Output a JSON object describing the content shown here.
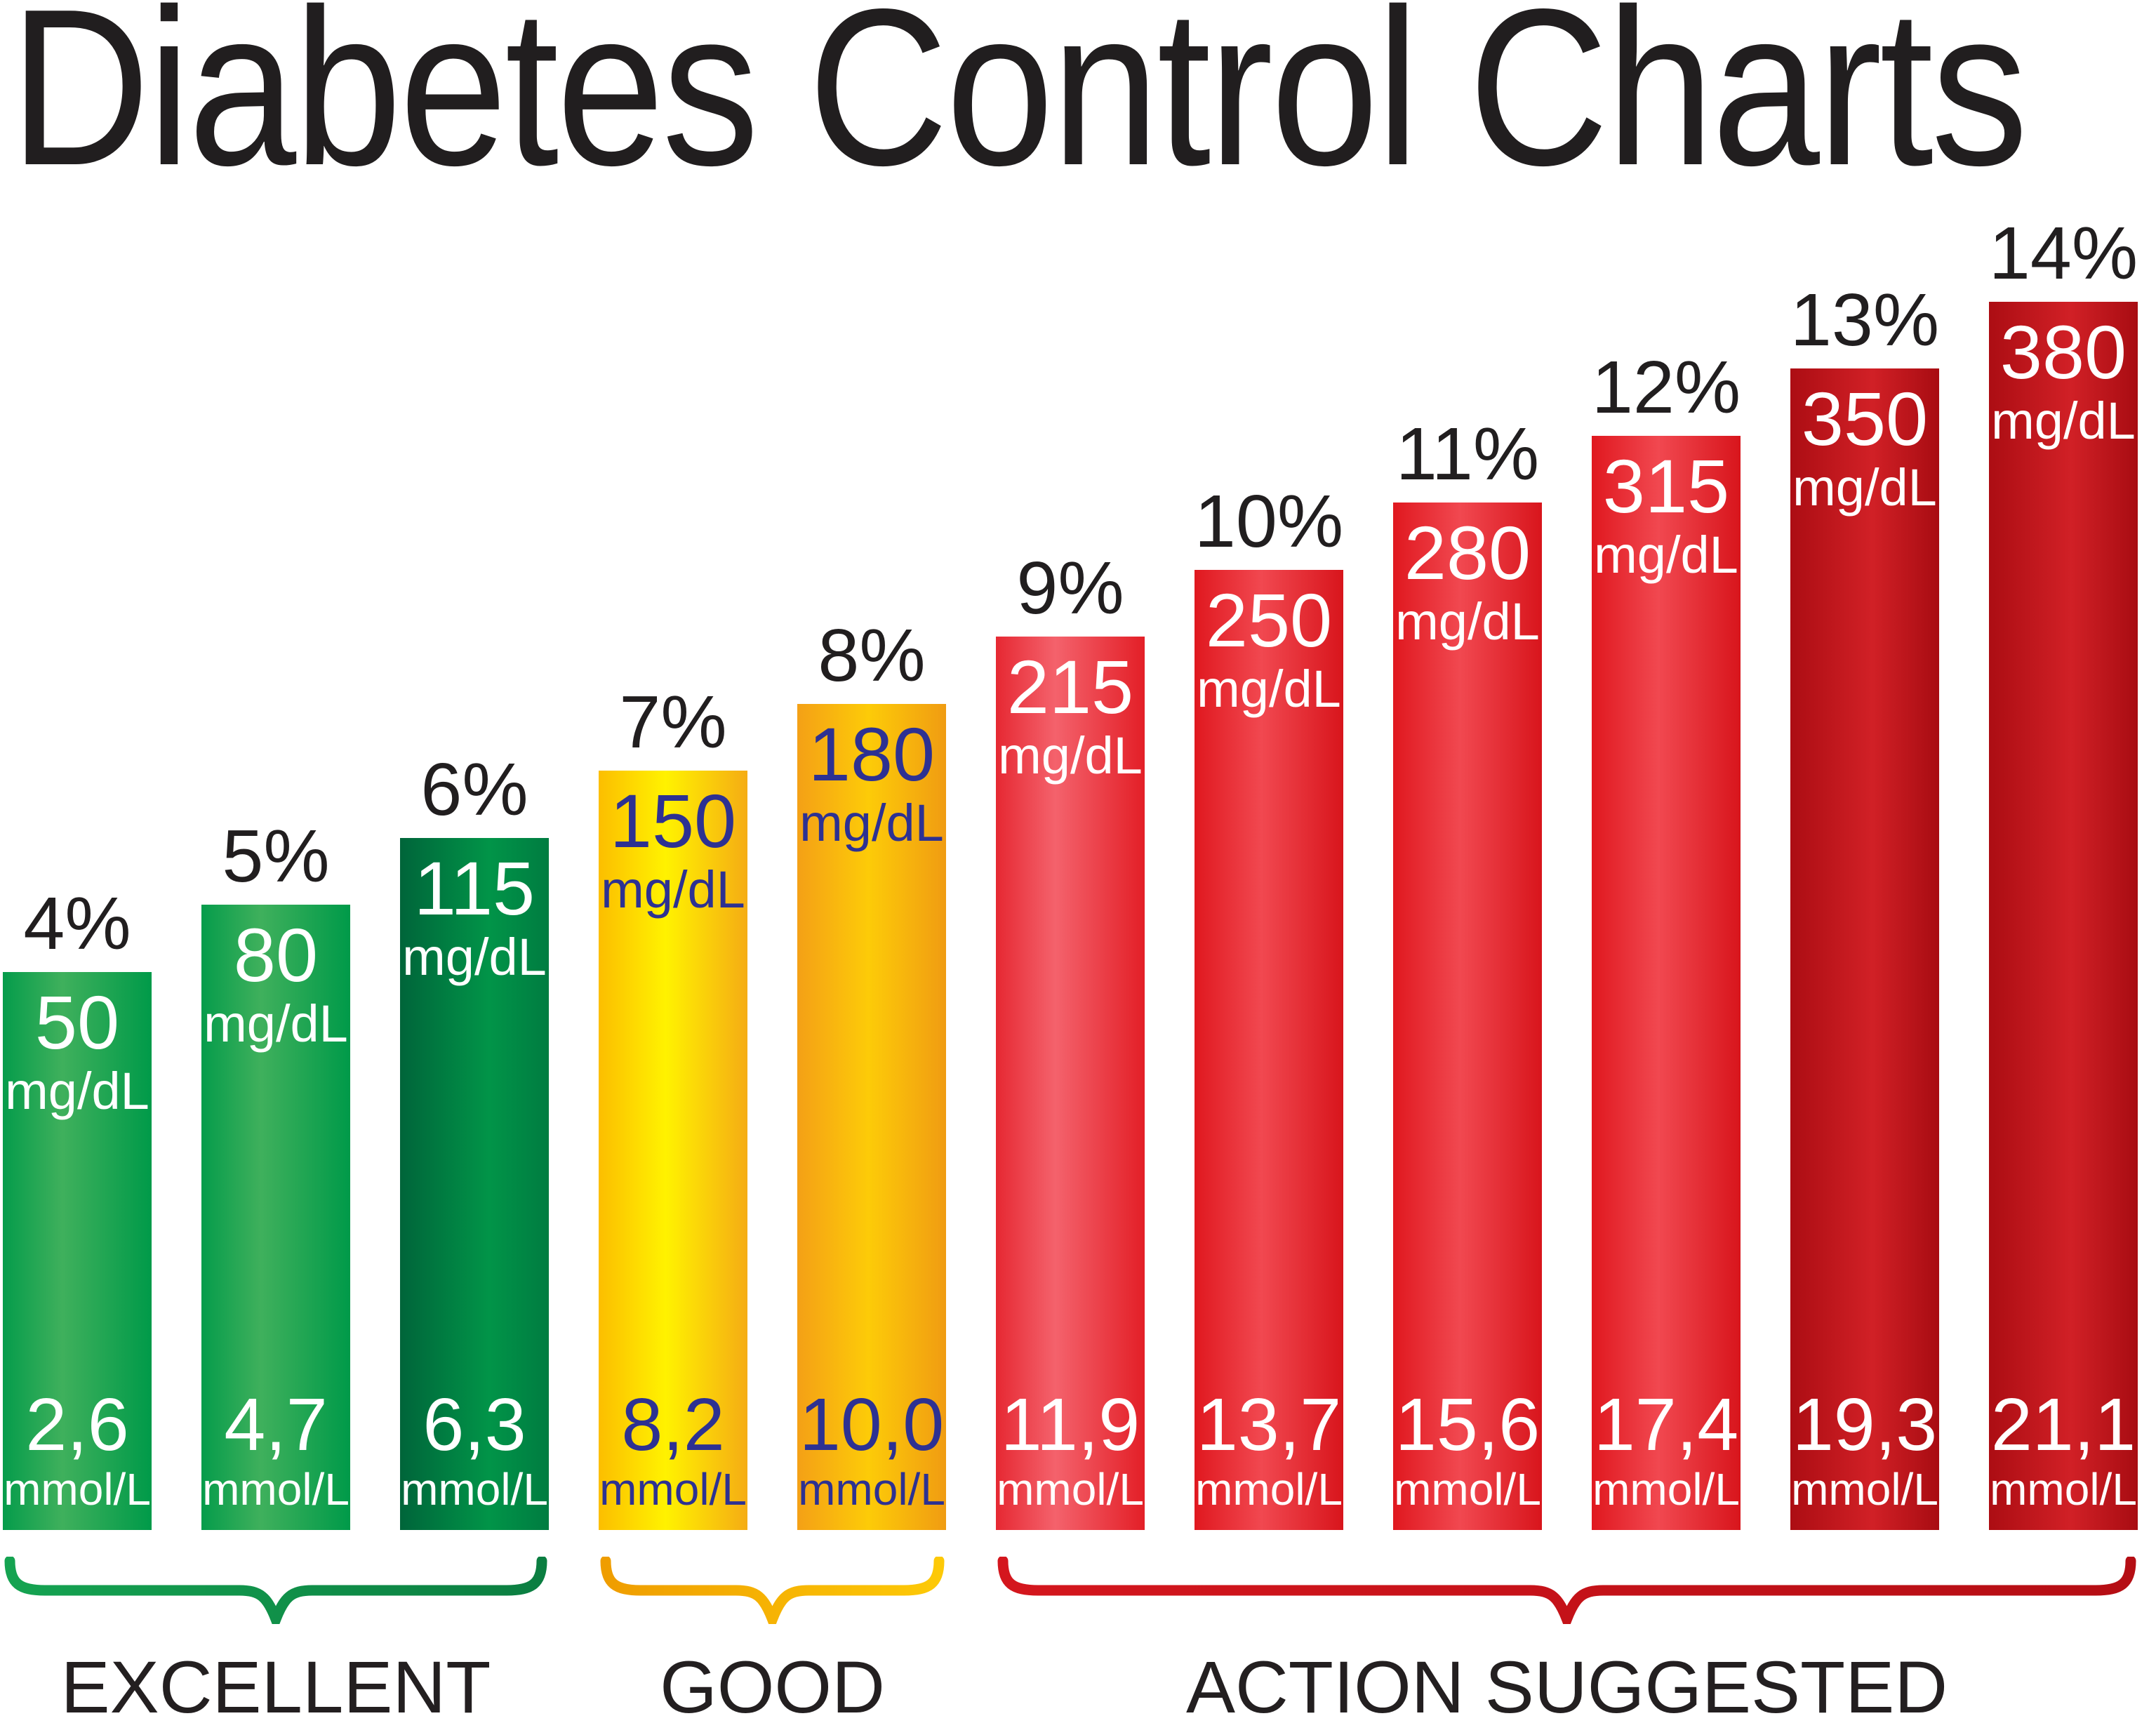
{
  "title": "Diabetes Control Charts",
  "chart_data": {
    "type": "bar",
    "title": "Diabetes Control Charts",
    "categories": [
      "4%",
      "5%",
      "6%",
      "7%",
      "8%",
      "9%",
      "10%",
      "11%",
      "12%",
      "13%",
      "14%"
    ],
    "series": [
      {
        "name": "mg/dL",
        "values": [
          50,
          80,
          115,
          150,
          180,
          215,
          250,
          280,
          315,
          350,
          380
        ]
      },
      {
        "name": "mmol/L",
        "values": [
          2.6,
          4.7,
          6.3,
          8.2,
          10.0,
          11.9,
          13.7,
          15.6,
          17.4,
          19.3,
          21.1
        ]
      }
    ],
    "groups": [
      {
        "label": "EXCELLENT",
        "categories": [
          "4%",
          "5%",
          "6%"
        ]
      },
      {
        "label": "GOOD",
        "categories": [
          "7%",
          "8%"
        ]
      },
      {
        "label": "ACTION SUGGESTED",
        "categories": [
          "9%",
          "10%",
          "11%",
          "12%",
          "13%",
          "14%"
        ]
      }
    ],
    "ylabel": "",
    "xlabel": "",
    "legend": "none",
    "grid": false,
    "axes_hidden": true,
    "value_label_position": "inside-top and inside-bottom"
  },
  "bars": [
    {
      "pct": "4%",
      "mg": "50",
      "mg_unit": "mg/dL",
      "mmol": "2,6",
      "mmol_unit": "mmol/L",
      "palette": "green"
    },
    {
      "pct": "5%",
      "mg": "80",
      "mg_unit": "mg/dL",
      "mmol": "4,7",
      "mmol_unit": "mmol/L",
      "palette": "green"
    },
    {
      "pct": "6%",
      "mg": "115",
      "mg_unit": "mg/dL",
      "mmol": "6,3",
      "mmol_unit": "mmol/L",
      "palette": "green_dark"
    },
    {
      "pct": "7%",
      "mg": "150",
      "mg_unit": "mg/dL",
      "mmol": "8,2",
      "mmol_unit": "mmol/L",
      "palette": "yellow"
    },
    {
      "pct": "8%",
      "mg": "180",
      "mg_unit": "mg/dL",
      "mmol": "10,0",
      "mmol_unit": "mmol/L",
      "palette": "yellow_dark"
    },
    {
      "pct": "9%",
      "mg": "215",
      "mg_unit": "mg/dL",
      "mmol": "11,9",
      "mmol_unit": "mmol/L",
      "palette": "red_light"
    },
    {
      "pct": "10%",
      "mg": "250",
      "mg_unit": "mg/dL",
      "mmol": "13,7",
      "mmol_unit": "mmol/L",
      "palette": "red"
    },
    {
      "pct": "11%",
      "mg": "280",
      "mg_unit": "mg/dL",
      "mmol": "15,6",
      "mmol_unit": "mmol/L",
      "palette": "red"
    },
    {
      "pct": "12%",
      "mg": "315",
      "mg_unit": "mg/dL",
      "mmol": "17,4",
      "mmol_unit": "mmol/L",
      "palette": "red"
    },
    {
      "pct": "13%",
      "mg": "350",
      "mg_unit": "mg/dL",
      "mmol": "19,3",
      "mmol_unit": "mmol/L",
      "palette": "red_dark"
    },
    {
      "pct": "14%",
      "mg": "380",
      "mg_unit": "mg/dL",
      "mmol": "21,1",
      "mmol_unit": "mmol/L",
      "palette": "red_dark"
    }
  ],
  "palettes": {
    "green": {
      "edge": "#059c4b",
      "mid": "#3fb05c",
      "edge2": "#009a49",
      "mid_pos": "40%",
      "text": "#ffffff"
    },
    "green_dark": {
      "edge": "#00653a",
      "mid": "#019448",
      "edge2": "#007c41",
      "mid_pos": "60%",
      "text": "#ffffff"
    },
    "yellow": {
      "edge": "#fcbe00",
      "mid": "#fff200",
      "edge2": "#f5ac14",
      "mid_pos": "45%",
      "text": "#2d3192"
    },
    "yellow_dark": {
      "edge": "#f4a016",
      "mid": "#fdcb08",
      "edge2": "#f09c12",
      "mid_pos": "48%",
      "text": "#2d3192"
    },
    "red_light": {
      "edge": "#e62832",
      "mid": "#f4626c",
      "edge2": "#e31f27",
      "mid_pos": "40%",
      "text": "#ffffff"
    },
    "red": {
      "edge": "#e0181f",
      "mid": "#f14850",
      "edge2": "#d8151c",
      "mid_pos": "45%",
      "text": "#ffffff"
    },
    "red_dark": {
      "edge": "#ac0d13",
      "mid": "#d12026",
      "edge2": "#a80c12",
      "mid_pos": "55%",
      "text": "#ffffff"
    }
  },
  "groups": [
    {
      "label": "EXCELLENT",
      "from": 0,
      "to": 2,
      "brace_color_start": "#15a351",
      "brace_color_end": "#0b7e41"
    },
    {
      "label": "GOOD",
      "from": 3,
      "to": 4,
      "brace_color_start": "#ef9d00",
      "brace_color_end": "#fdc907"
    },
    {
      "label": "ACTION SUGGESTED",
      "from": 5,
      "to": 10,
      "brace_color_start": "#d4161d",
      "brace_color_end": "#b50e14"
    }
  ],
  "text_colors": {
    "headings": "#211e1f",
    "captions": "#231f20",
    "navy_on_yellow": "#2d3192",
    "white_on_color": "#ffffff"
  }
}
